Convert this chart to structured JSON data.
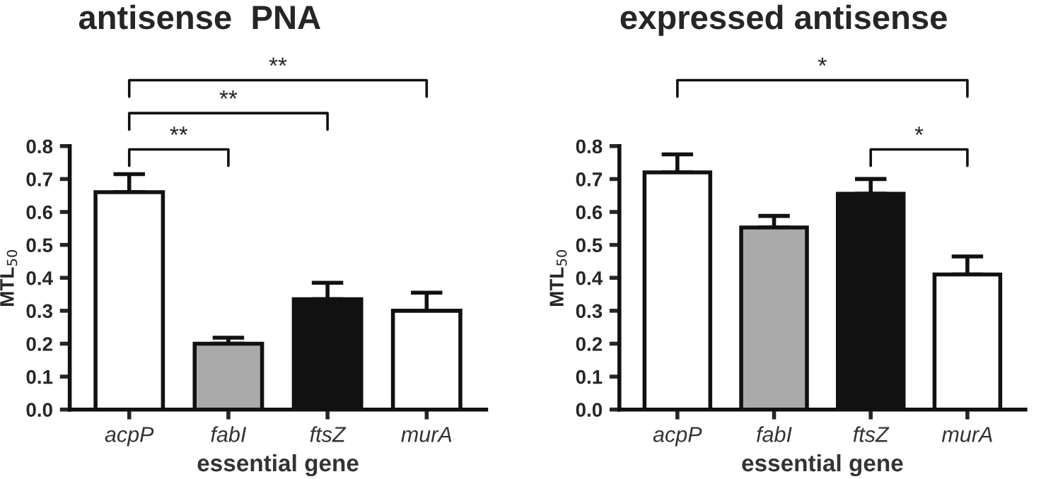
{
  "chart_data": [
    {
      "type": "bar",
      "title": "antisense  PNA",
      "xlabel": "essential gene",
      "ylabel": "MTL$_{50}$",
      "categories": [
        "acpP",
        "fabI",
        "ftsZ",
        "murA"
      ],
      "values": [
        0.66,
        0.2,
        0.335,
        0.3
      ],
      "errors": [
        0.055,
        0.018,
        0.05,
        0.055
      ],
      "colors": [
        "#ffffff",
        "#aaaaaa",
        "#111111",
        "#ffffff"
      ],
      "ylim": [
        0,
        0.8
      ],
      "yticks": [
        {
          "value": 0,
          "label": "0.0"
        },
        0.1,
        0.2,
        0.3,
        0.4,
        0.5,
        0.6,
        0.7,
        0.8
      ],
      "annotations": [
        "**",
        "**",
        "**"
      ],
      "grid": false,
      "legend": false
    },
    {
      "type": "bar",
      "title": "expressed antisense",
      "xlabel": "essential gene",
      "ylabel": "MTL$_{50}$",
      "categories": [
        "acpP",
        "fabI",
        "ftsZ",
        "murA"
      ],
      "values": [
        0.72,
        0.553,
        0.655,
        0.41
      ],
      "errors": [
        0.055,
        0.035,
        0.045,
        0.055
      ],
      "colors": [
        "#ffffff",
        "#aaaaaa",
        "#111111",
        "#ffffff"
      ],
      "ylim": [
        0,
        0.8
      ],
      "yticks": [
        {
          "value": 0,
          "label": "0.0"
        },
        0.1,
        0.2,
        0.3,
        0.4,
        0.5,
        0.6,
        0.7,
        0.8
      ],
      "annotations": [
        "*",
        "*"
      ],
      "grid": false,
      "legend": false
    }
  ]
}
